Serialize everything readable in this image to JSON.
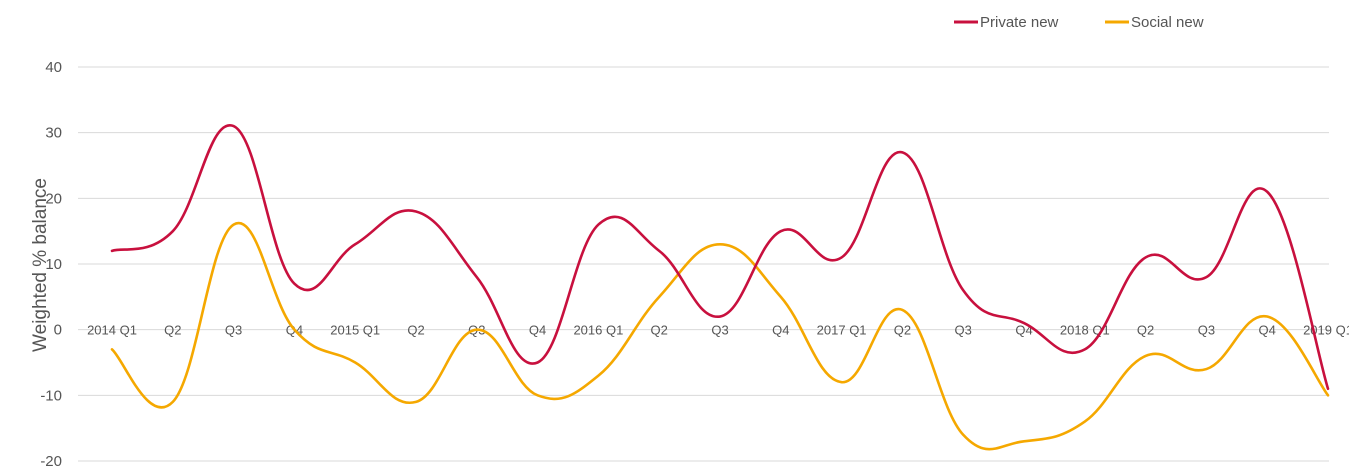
{
  "chart_data": {
    "type": "line",
    "title": "",
    "xlabel": "",
    "ylabel": "Weighted % balance",
    "ylim": [
      -20,
      40
    ],
    "yticks": [
      40,
      30,
      20,
      10,
      0,
      -10,
      -20
    ],
    "grid": true,
    "legend_position": "top-right",
    "categories": [
      "2014 Q1",
      "Q2",
      "Q3",
      "Q4",
      "2015 Q1",
      "Q2",
      "Q3",
      "Q4",
      "2016 Q1",
      "Q2",
      "Q3",
      "Q4",
      "2017 Q1",
      "Q2",
      "Q3",
      "Q4",
      "2018 Q1",
      "Q2",
      "Q3",
      "Q4",
      "2019 Q1"
    ],
    "series": [
      {
        "name": "Private new",
        "color": "#c8103e",
        "values": [
          12,
          15,
          31,
          7,
          13,
          18,
          8,
          -5,
          16,
          12,
          2,
          15,
          11,
          27,
          6,
          1,
          -3,
          11,
          8,
          21,
          -9
        ]
      },
      {
        "name": "Social new",
        "color": "#f5a800",
        "values": [
          -3,
          -11,
          16,
          0,
          -5,
          -11,
          0,
          -10,
          -7,
          5,
          13,
          5,
          -8,
          3,
          -16,
          -17,
          -14,
          -4,
          -6,
          2,
          -10
        ]
      }
    ]
  }
}
